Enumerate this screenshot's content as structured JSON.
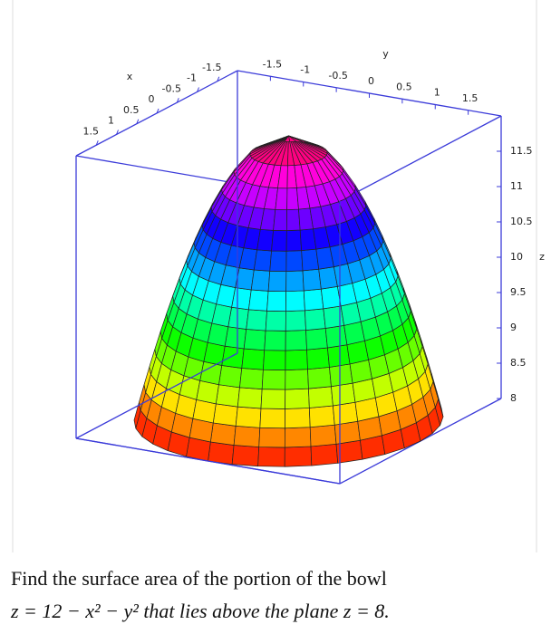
{
  "chart_data": {
    "type": "surface3d",
    "xlabel": "x",
    "ylabel": "y",
    "zlabel": "z",
    "xlim": [
      -2,
      2
    ],
    "ylim": [
      -2,
      2
    ],
    "zlim": [
      8,
      12
    ],
    "xticks": [
      1.5,
      1,
      0.5,
      0,
      -0.5,
      -1,
      -1.5
    ],
    "yticks": [
      -1.5,
      -1,
      -0.5,
      0,
      0.5,
      1,
      1.5
    ],
    "zticks": [
      8,
      8.5,
      9,
      9.5,
      10,
      10.5,
      11,
      11.5
    ],
    "colormap": "hsv",
    "box_color": "#3b3bd9"
  },
  "question": [
    "Find the surface area of the portion of the bowl",
    "z = 12 − x² − y² that lies above the plane z = 8."
  ]
}
